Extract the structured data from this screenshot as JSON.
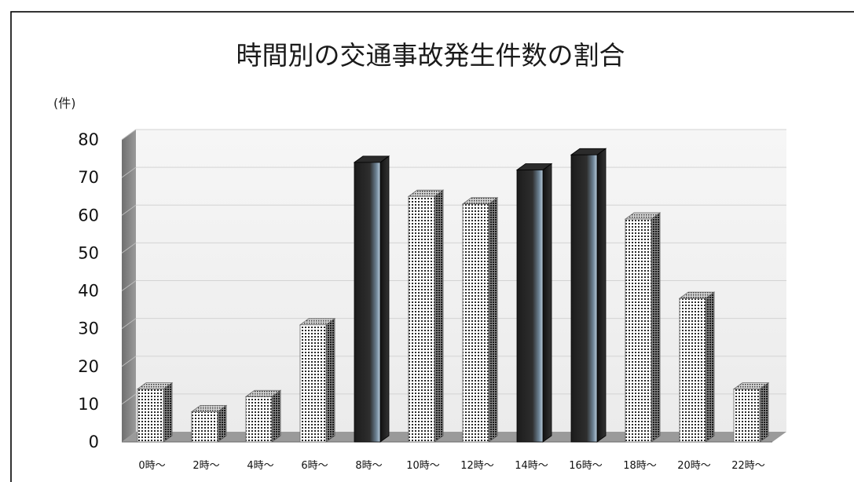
{
  "chart_data": {
    "type": "bar",
    "title": "時間別の交通事故発生件数の割合",
    "ylabel": "(件)",
    "xlabel": "",
    "ylim": [
      0,
      80
    ],
    "yticks": [
      0,
      10,
      20,
      30,
      40,
      50,
      60,
      70,
      80
    ],
    "categories": [
      "0時～",
      "2時～",
      "4時～",
      "6時～",
      "8時～",
      "10時～",
      "12時～",
      "14時～",
      "16時～",
      "18時～",
      "20時～",
      "22時～"
    ],
    "values": [
      14,
      8,
      12,
      31,
      74,
      65,
      63,
      72,
      76,
      59,
      38,
      14
    ],
    "fill_styles": [
      "dotted",
      "dotted",
      "dotted",
      "dotted",
      "dark",
      "dotted",
      "dotted",
      "dark",
      "dark",
      "dotted",
      "dotted",
      "dotted"
    ],
    "grid": true,
    "legend": "none",
    "colors": {
      "dark_bar": "#222222",
      "dark_bar_highlight": "#9fb6c8",
      "dotted_bar": "#ffffff",
      "wall": "#f0f0f0",
      "frame": "#000000"
    }
  }
}
